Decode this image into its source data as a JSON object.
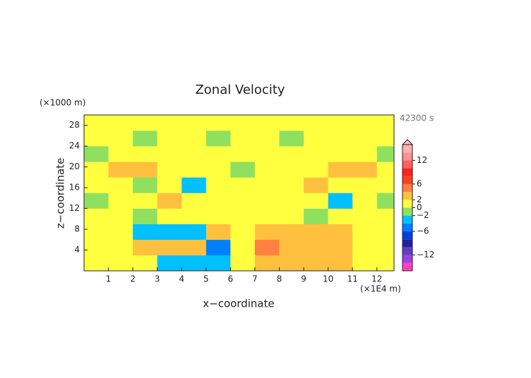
{
  "chart_data": {
    "type": "heatmap",
    "title": "Zonal Velocity",
    "time_label": "42300 s",
    "x_label": "x−coordinate",
    "y_label": "z−coordinate",
    "x_unit": "(×1E4 m)",
    "y_unit": "(×1000 m)",
    "x_bins": [
      0,
      1,
      2,
      3,
      4,
      5,
      6,
      7,
      8,
      9,
      10,
      11,
      12,
      12.7
    ],
    "y_bins": [
      0,
      3,
      6,
      9,
      12,
      15,
      18,
      21,
      24,
      27,
      30
    ],
    "values": [
      [
        1,
        1,
        1,
        -3,
        -3,
        -3,
        1,
        2,
        3,
        3,
        3,
        1,
        1
      ],
      [
        1,
        1,
        3,
        3,
        3,
        -5,
        1,
        5,
        3,
        3,
        3,
        1,
        1
      ],
      [
        1,
        1,
        -3,
        -3,
        -3,
        3,
        1,
        3,
        3,
        3,
        3,
        1,
        1
      ],
      [
        1,
        1,
        -1,
        1,
        1,
        1,
        1,
        1,
        1,
        -1,
        1,
        1,
        1
      ],
      [
        -1,
        1,
        1,
        3,
        1,
        1,
        1,
        1,
        1,
        1,
        -3,
        1,
        -1
      ],
      [
        1,
        1,
        -1,
        1,
        -3,
        1,
        1,
        1,
        1,
        3,
        1,
        1,
        1
      ],
      [
        1,
        3,
        3,
        1,
        1,
        1,
        -1,
        1,
        1,
        1,
        3,
        3,
        1
      ],
      [
        -1,
        1,
        1,
        1,
        1,
        1,
        1,
        1,
        1,
        1,
        1,
        1,
        -1
      ],
      [
        1,
        1,
        -1,
        1,
        1,
        -1,
        1,
        1,
        -1,
        1,
        1,
        1,
        1
      ],
      [
        1,
        1,
        1,
        1,
        1,
        1,
        1,
        1,
        1,
        1,
        1,
        1,
        1
      ]
    ],
    "xlim": [
      0,
      12.7
    ],
    "ylim": [
      0,
      30
    ],
    "xticks": [
      1,
      2,
      3,
      4,
      5,
      6,
      7,
      8,
      9,
      10,
      11,
      12
    ],
    "yticks": [
      4,
      8,
      12,
      16,
      20,
      24,
      28
    ],
    "colorbar": {
      "levels": [
        -16,
        -14,
        -12,
        -10,
        -8,
        -6,
        -4,
        -2,
        0,
        2,
        4,
        6,
        8,
        10,
        12,
        14,
        16
      ],
      "colors": [
        "#ff40c0",
        "#a040e0",
        "#6040c0",
        "#2020a0",
        "#0040e0",
        "#0080ff",
        "#00c0ff",
        "#90e060",
        "#ffff40",
        "#ffc040",
        "#ff8040",
        "#ff4020",
        "#ff2020",
        "#ff6060",
        "#ff9090",
        "#ffb0b0"
      ],
      "ticks": [
        12,
        6,
        2,
        0,
        {
          "value": -2,
          "label": "−2"
        },
        {
          "value": -6,
          "label": "−6"
        },
        {
          "value": -12,
          "label": "−12"
        }
      ]
    }
  }
}
